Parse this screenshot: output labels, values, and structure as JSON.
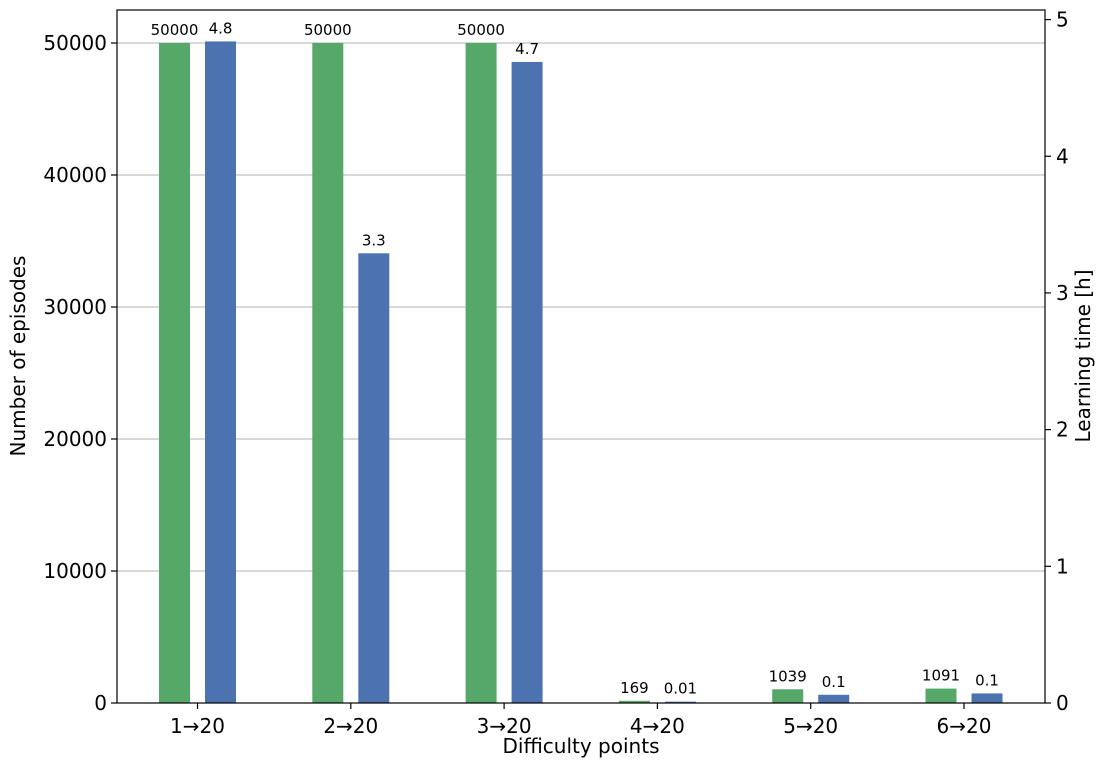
{
  "chart_data": {
    "type": "bar",
    "categories": [
      "1→20",
      "2→20",
      "3→20",
      "4→20",
      "5→20",
      "6→20"
    ],
    "xlabel": "Difficulty points",
    "ylabel": "Number of episodes",
    "y2label": "Learning time [h]",
    "ylim": [
      0,
      52500
    ],
    "y2lim": [
      0,
      5.07
    ],
    "yticks": [
      0,
      10000,
      20000,
      30000,
      40000,
      50000
    ],
    "y2ticks": [
      0,
      1,
      2,
      3,
      4,
      5
    ],
    "grid": "horizontal",
    "series": [
      {
        "axis": "left",
        "color": "#55a868",
        "values": [
          50000,
          50000,
          50000,
          169,
          1039,
          1091
        ],
        "labels": [
          "50000",
          "50000",
          "50000",
          "169",
          "1039",
          "1091"
        ]
      },
      {
        "axis": "right",
        "color": "#4c72b0",
        "values": [
          4.84,
          3.29,
          4.69,
          0.01,
          0.06,
          0.07
        ],
        "labels": [
          "4.8",
          "3.3",
          "4.7",
          "0.01",
          "0.1",
          "0.1"
        ]
      }
    ]
  }
}
